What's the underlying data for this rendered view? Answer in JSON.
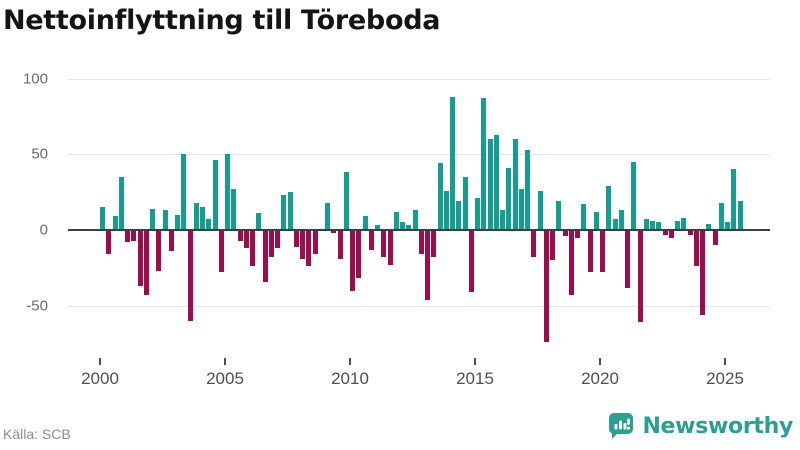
{
  "page": {
    "title": "Nettoinflyttning till Töreboda",
    "source": "Källa: SCB"
  },
  "brand": {
    "name": "Newsworthy",
    "icon": "newsworthy-chart-bubble-icon",
    "color": "#2ba092"
  },
  "chart_data": {
    "type": "bar",
    "title": "Nettoinflyttning till Töreboda",
    "x_interval": "quarterly",
    "x_start": "2000 Q1",
    "x_end": "2025 Q3",
    "x_tick_labels": [
      "2000",
      "2005",
      "2010",
      "2015",
      "2020",
      "2025"
    ],
    "y_tick_labels": [
      "100",
      "50",
      "0",
      "-50"
    ],
    "y_tick_values": [
      100,
      50,
      0,
      -50
    ],
    "ylim": [
      -80,
      105
    ],
    "grid": "horizontal",
    "legend": "none",
    "positive_color": "#169d92",
    "negative_color": "#9b0d4b",
    "series": [
      {
        "name": "Nettoinflyttning",
        "values": [
          15,
          -16,
          9,
          35,
          -8,
          -7,
          -37,
          -43,
          14,
          -27,
          13,
          -14,
          10,
          50,
          -60,
          18,
          15,
          7,
          46,
          -28,
          50,
          27,
          -7,
          -12,
          -24,
          11,
          -34,
          -18,
          -12,
          23,
          25,
          -11,
          -19,
          -24,
          -16,
          0,
          18,
          -2,
          -19,
          38,
          -40,
          -32,
          9,
          -13,
          3,
          -18,
          -23,
          12,
          5,
          3,
          13,
          -16,
          -46,
          -18,
          44,
          26,
          88,
          19,
          35,
          -41,
          21,
          87,
          60,
          63,
          13,
          41,
          60,
          27,
          53,
          -18,
          26,
          -74,
          -20,
          19,
          -4,
          -43,
          -5,
          17,
          -28,
          12,
          -28,
          29,
          7,
          13,
          -38,
          45,
          -61,
          7,
          6,
          5,
          -3,
          -5,
          6,
          8,
          -3,
          -24,
          -56,
          4,
          -10,
          18,
          5,
          40,
          19
        ]
      }
    ]
  }
}
